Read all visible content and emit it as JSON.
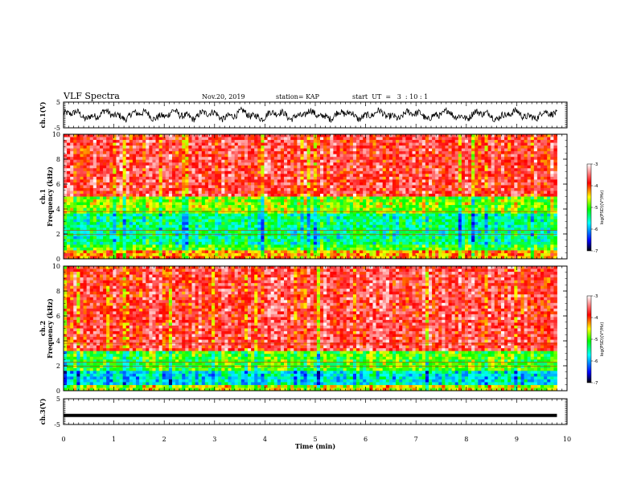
{
  "header": {
    "title": "VLF Spectra",
    "date": "Nov.20, 2019",
    "station": "station= KAP",
    "start_ut": "start  UT  =   3  : 10 : 1"
  },
  "colors": {
    "spectrum_scale": [
      "#000000",
      "#0000ff",
      "#00ffff",
      "#00ff00",
      "#ffff00",
      "#ff0000",
      "#ffffff"
    ]
  },
  "chart_data": [
    {
      "type": "line",
      "panel": "ch1-waveform",
      "ylabel": "ch.1(V)",
      "ylim": [
        -5,
        5
      ],
      "yticks": [
        "5",
        "-5"
      ],
      "xlim": [
        0,
        10
      ],
      "description_series": "waveform oscillating roughly between -2 and 2 V over 0 to 9.8 min"
    },
    {
      "type": "heatmap",
      "panel": "ch1-spectrogram",
      "ylabel": "ch.1\nFrequency  (kHz)",
      "ylabel_line1": "ch.1",
      "ylabel_line2": "Frequency  (kHz)",
      "ylim": [
        0,
        10
      ],
      "yticks": [
        "0",
        "2",
        "4",
        "6",
        "8",
        "10"
      ],
      "xlim": [
        0,
        9.8
      ],
      "bands_kHz": [
        {
          "from": 0,
          "to": 0.6,
          "level": -4.2
        },
        {
          "from": 0.6,
          "to": 1.2,
          "level": -5.0
        },
        {
          "from": 1.2,
          "to": 3.6,
          "level": -5.4
        },
        {
          "from": 3.6,
          "to": 5.0,
          "level": -4.8
        },
        {
          "from": 5.0,
          "to": 10,
          "level": -3.7
        }
      ],
      "colorbar": {
        "label": "log(PSD)(V²/Hz)",
        "range": [
          -7,
          -3
        ],
        "ticks": [
          "-3",
          "-4",
          "-5",
          "-6",
          "-7"
        ]
      }
    },
    {
      "type": "heatmap",
      "panel": "ch2-spectrogram",
      "ylabel_line1": "ch.2",
      "ylabel_line2": "Frequency  (kHz)",
      "ylim": [
        0,
        10
      ],
      "yticks": [
        "0",
        "2",
        "4",
        "6",
        "8",
        "10"
      ],
      "xlim": [
        0,
        9.8
      ],
      "bands_kHz": [
        {
          "from": 0,
          "to": 0.5,
          "level": -4.6
        },
        {
          "from": 0.5,
          "to": 1.7,
          "level": -5.7
        },
        {
          "from": 1.7,
          "to": 3.2,
          "level": -5.0
        },
        {
          "from": 3.2,
          "to": 10,
          "level": -3.7
        }
      ],
      "colorbar": {
        "label": "log(PSD)(V²/Hz)",
        "range": [
          -7,
          -3
        ],
        "ticks": [
          "-3",
          "-4",
          "-5",
          "-6",
          "-7"
        ]
      }
    },
    {
      "type": "line",
      "panel": "ch3-waveform",
      "ylabel": "ch.3(V)",
      "ylim": [
        -5,
        5
      ],
      "yticks": [
        "5",
        "-5"
      ],
      "xlim": [
        0,
        10
      ],
      "level_V": -1.5
    }
  ],
  "xaxis": {
    "label": "Time  (min)",
    "ticks": [
      "0",
      "1",
      "2",
      "3",
      "4",
      "5",
      "6",
      "7",
      "8",
      "9",
      "10"
    ]
  }
}
